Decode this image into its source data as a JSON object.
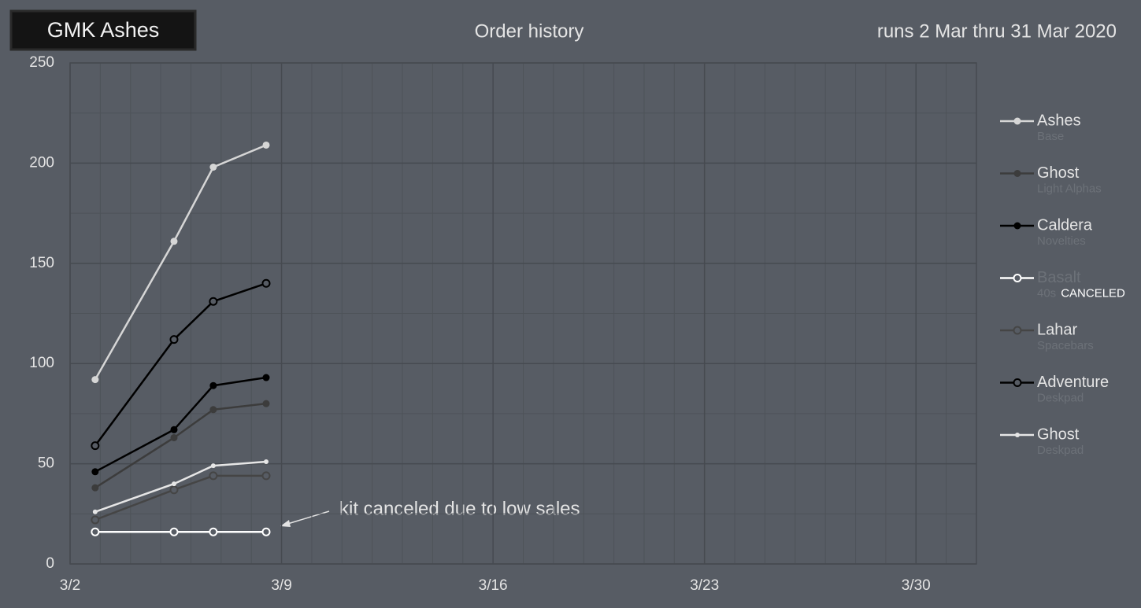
{
  "chart_data": {
    "type": "line",
    "badge": "GMK Ashes",
    "title": "Order history",
    "subtitle": "runs 2 Mar thru 31 Mar 2020",
    "annotation": "kit canceled due to low sales",
    "x": [
      2.83,
      5.44,
      6.74,
      8.49
    ],
    "xlim": [
      2,
      32
    ],
    "xticks": [
      {
        "value": 2,
        "label": "3/2"
      },
      {
        "value": 9,
        "label": "3/9"
      },
      {
        "value": 16,
        "label": "3/16"
      },
      {
        "value": 23,
        "label": "3/23"
      },
      {
        "value": 30,
        "label": "3/30"
      }
    ],
    "xminorticks": [
      3,
      4,
      5,
      6,
      7,
      8,
      10,
      11,
      12,
      13,
      14,
      15,
      17,
      18,
      19,
      20,
      21,
      22,
      24,
      25,
      26,
      27,
      28,
      29,
      31,
      32
    ],
    "ylim": [
      0,
      250
    ],
    "yticks": [
      0,
      50,
      100,
      150,
      200,
      250
    ],
    "yminorticks": [
      25,
      75,
      125,
      175,
      225
    ],
    "grid": true,
    "legend": "right",
    "series": [
      {
        "name": "Ashes",
        "subtitle": "Base",
        "color": "#d6d6d6",
        "marker": "filled",
        "values": [
          92,
          161,
          198,
          209
        ]
      },
      {
        "name": "Ghost",
        "subtitle": "Light Alphas",
        "color": "#3c3c3c",
        "marker": "filled",
        "values": [
          38,
          63,
          77,
          80
        ]
      },
      {
        "name": "Caldera",
        "subtitle": "Novelties",
        "color": "#000000",
        "marker": "filled",
        "values": [
          46,
          67,
          89,
          93
        ]
      },
      {
        "name": "Basalt",
        "subtitle": "40s",
        "note": "CANCELED",
        "color": "#ffffff",
        "marker": "hollow",
        "values": [
          16,
          16,
          16,
          16
        ]
      },
      {
        "name": "Lahar",
        "subtitle": "Spacebars",
        "color": "#454545",
        "marker": "hollow",
        "values": [
          22,
          37,
          44,
          44
        ]
      },
      {
        "name": "Adventure",
        "subtitle": "Deskpad",
        "color": "#000000",
        "marker": "hollow",
        "values": [
          59,
          112,
          131,
          140
        ]
      },
      {
        "name": "Ghost",
        "subtitle": "Deskpad",
        "color": "#e6e6e6",
        "marker": "small",
        "values": [
          26,
          40,
          49,
          51
        ]
      }
    ]
  }
}
